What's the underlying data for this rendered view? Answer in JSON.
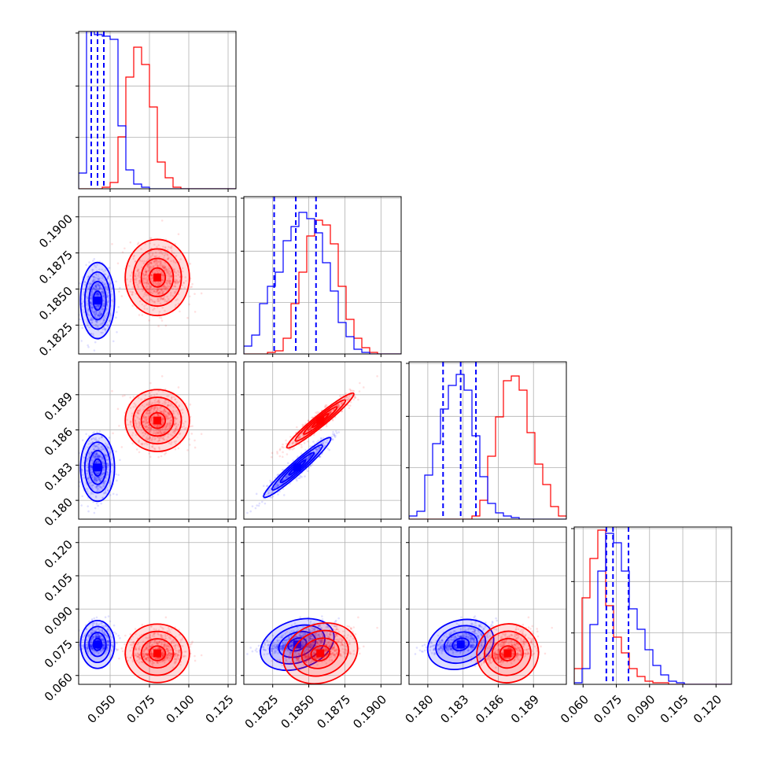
{
  "chart_data": {
    "type": "corner",
    "grid": true,
    "colors": {
      "series_a": "#0000ff",
      "series_b": "#ff0000",
      "quantile_lines": "#0000ff"
    },
    "parameters": [
      {
        "range": [
          0.03,
          0.13
        ],
        "ticks": [
          0.05,
          0.075,
          0.1,
          0.125
        ],
        "tick_labels": [
          "0.050",
          "0.075",
          "0.100",
          "0.125"
        ]
      },
      {
        "range": [
          0.1805,
          0.1914
        ],
        "ticks": [
          0.1825,
          0.185,
          0.1875,
          0.19
        ],
        "tick_labels": [
          "0.1825",
          "0.1850",
          "0.1875",
          "0.1900"
        ]
      },
      {
        "range": [
          0.1784,
          0.1918
        ],
        "ticks": [
          0.18,
          0.183,
          0.186,
          0.189
        ],
        "tick_labels": [
          "0.180",
          "0.183",
          "0.186",
          "0.189"
        ]
      },
      {
        "range": [
          0.056,
          0.127
        ],
        "ticks": [
          0.06,
          0.075,
          0.09,
          0.105,
          0.12
        ],
        "tick_labels": [
          "0.060",
          "0.075",
          "0.090",
          "0.105",
          "0.120"
        ]
      }
    ],
    "series": [
      {
        "color": "#0000ff",
        "mean": [
          0.042,
          0.1842,
          0.1828,
          0.074
        ],
        "std": [
          0.0045,
          0.0011,
          0.0012,
          0.0045
        ],
        "quantiles": [
          [
            0.038,
            0.042,
            0.046
          ],
          [
            0.1826,
            0.1841,
            0.1855
          ],
          [
            0.1813,
            0.1828,
            0.1841
          ],
          [
            0.0705,
            0.0735,
            0.0805
          ]
        ]
      },
      {
        "color": "#ff0000",
        "mean": [
          0.08,
          0.1858,
          0.1868,
          0.07
        ],
        "std": [
          0.0085,
          0.0011,
          0.0011,
          0.0055
        ],
        "quantiles": null
      }
    ],
    "histograms": {
      "bins": 20,
      "series_a": [
        [
          0.1,
          1.0,
          0.98,
          0.97,
          0.95,
          0.4,
          0.12,
          0.03,
          0.01,
          0,
          0,
          0,
          0,
          0,
          0,
          0,
          0,
          0,
          0,
          0
        ],
        [
          0.05,
          0.12,
          0.32,
          0.43,
          0.52,
          0.72,
          0.81,
          0.9,
          0.86,
          0.77,
          0.58,
          0.4,
          0.2,
          0.11,
          0.03,
          0.01,
          0,
          0,
          0,
          0
        ],
        [
          0.02,
          0.05,
          0.28,
          0.48,
          0.7,
          0.85,
          0.92,
          0.82,
          0.53,
          0.27,
          0.1,
          0.04,
          0.02,
          0.01,
          0,
          0,
          0,
          0,
          0,
          0
        ],
        [
          0.01,
          0.1,
          0.38,
          0.72,
          0.96,
          0.9,
          0.72,
          0.48,
          0.35,
          0.22,
          0.12,
          0.06,
          0.02,
          0.01,
          0,
          0,
          0,
          0,
          0,
          0
        ]
      ],
      "series_b": [
        [
          0,
          0,
          0,
          0.01,
          0.04,
          0.33,
          0.71,
          0.9,
          0.79,
          0.52,
          0.17,
          0.07,
          0.01,
          0,
          0,
          0,
          0,
          0,
          0,
          0
        ],
        [
          0,
          0,
          0,
          0.01,
          0.02,
          0.1,
          0.32,
          0.52,
          0.75,
          0.85,
          0.82,
          0.7,
          0.43,
          0.22,
          0.1,
          0.04,
          0.01,
          0,
          0,
          0
        ],
        [
          0,
          0,
          0,
          0,
          0,
          0,
          0,
          0,
          0.02,
          0.12,
          0.4,
          0.65,
          0.88,
          0.91,
          0.82,
          0.55,
          0.35,
          0.22,
          0.08,
          0.02
        ],
        [
          0.1,
          0.55,
          0.8,
          0.98,
          0.5,
          0.3,
          0.2,
          0.1,
          0.05,
          0.02,
          0.01,
          0.01,
          0,
          0,
          0,
          0,
          0,
          0,
          0,
          0
        ]
      ]
    },
    "scatter_points_per_series": 700,
    "contour_levels_sigma": [
      0.5,
      1.0,
      1.5,
      2.0
    ]
  }
}
